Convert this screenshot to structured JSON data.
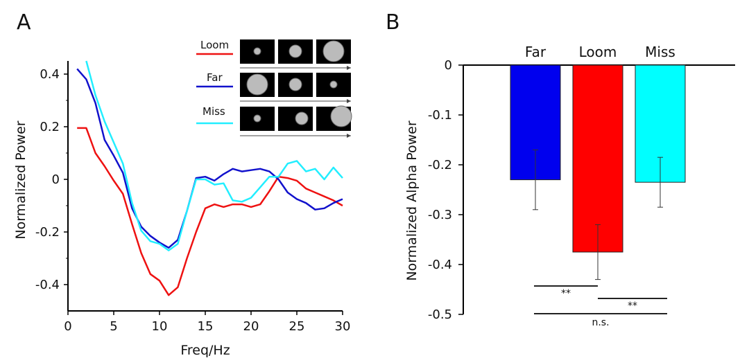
{
  "panels": {
    "a_label": "A",
    "b_label": "B"
  },
  "chart_data": [
    {
      "type": "line",
      "panel": "A",
      "xlabel": "Freq/Hz",
      "ylabel": "Normalized Power",
      "xlim": [
        0,
        30
      ],
      "ylim": [
        -0.5,
        0.45
      ],
      "xticks": [
        0,
        5,
        10,
        15,
        20,
        25,
        30
      ],
      "yticks": [
        -0.4,
        -0.2,
        0,
        0.2,
        0.4
      ],
      "ytick_labels": [
        "-0.4",
        "-0.2",
        "0",
        "0.2",
        "0.4"
      ],
      "legend": {
        "position": "top-right",
        "entries": [
          "Loom",
          "Far",
          "Miss"
        ]
      },
      "series": [
        {
          "name": "Loom",
          "color": "#ee1111",
          "x": [
            1,
            2,
            3,
            4,
            5,
            6,
            7,
            8,
            9,
            10,
            11,
            12,
            13,
            14,
            15,
            16,
            17,
            18,
            19,
            20,
            21,
            22,
            23,
            24,
            25,
            26,
            27,
            28,
            29,
            30
          ],
          "y": [
            0.195,
            0.195,
            0.1,
            0.05,
            -0.005,
            -0.055,
            -0.17,
            -0.28,
            -0.36,
            -0.385,
            -0.44,
            -0.41,
            -0.3,
            -0.2,
            -0.11,
            -0.095,
            -0.105,
            -0.095,
            -0.095,
            -0.105,
            -0.095,
            -0.045,
            0.01,
            0.005,
            -0.005,
            -0.035,
            -0.05,
            -0.065,
            -0.08,
            -0.1
          ]
        },
        {
          "name": "Far",
          "color": "#1111cc",
          "x": [
            1,
            2,
            3,
            4,
            5,
            6,
            7,
            8,
            9,
            10,
            11,
            12,
            13,
            14,
            15,
            16,
            17,
            18,
            19,
            20,
            21,
            22,
            23,
            24,
            25,
            26,
            27,
            28,
            29,
            30
          ],
          "y": [
            0.42,
            0.38,
            0.29,
            0.15,
            0.09,
            0.025,
            -0.11,
            -0.18,
            -0.215,
            -0.24,
            -0.26,
            -0.23,
            -0.12,
            0.005,
            0.01,
            -0.005,
            0.02,
            0.04,
            0.03,
            0.035,
            0.04,
            0.03,
            0.0,
            -0.05,
            -0.075,
            -0.09,
            -0.115,
            -0.11,
            -0.09,
            -0.075
          ]
        },
        {
          "name": "Miss",
          "color": "#22eeff",
          "x": [
            2,
            3,
            4,
            5,
            6,
            7,
            8,
            9,
            10,
            11,
            12,
            13,
            14,
            15,
            16,
            17,
            18,
            19,
            20,
            21,
            22,
            23,
            24,
            25,
            26,
            27,
            28,
            29,
            30
          ],
          "y": [
            0.45,
            0.32,
            0.22,
            0.14,
            0.06,
            -0.09,
            -0.195,
            -0.235,
            -0.245,
            -0.27,
            -0.245,
            -0.12,
            0.0,
            0.0,
            -0.02,
            -0.015,
            -0.08,
            -0.085,
            -0.07,
            -0.03,
            0.01,
            0.01,
            0.06,
            0.07,
            0.03,
            0.04,
            0.0,
            0.045,
            0.005
          ]
        }
      ]
    },
    {
      "type": "bar",
      "panel": "B",
      "ylabel": "Normalized Alpha Power",
      "categories": [
        "Far",
        "Loom",
        "Miss"
      ],
      "values": [
        -0.23,
        -0.375,
        -0.235
      ],
      "errors": [
        0.06,
        0.055,
        0.05
      ],
      "colors": [
        "#0000ee",
        "#ff0000",
        "#00ffff"
      ],
      "ylim": [
        -0.5,
        0
      ],
      "yticks": [
        0,
        -0.1,
        -0.2,
        -0.3,
        -0.4,
        -0.5
      ],
      "ytick_labels": [
        "0",
        "-0.1",
        "-0.2",
        "-0.3",
        "-0.4",
        "-0.5"
      ],
      "comparisons": [
        {
          "pair": [
            "Far",
            "Loom"
          ],
          "label": "**"
        },
        {
          "pair": [
            "Loom",
            "Miss"
          ],
          "label": "**"
        },
        {
          "pair": [
            "Far",
            "Miss"
          ],
          "label": "n.s."
        }
      ]
    }
  ]
}
